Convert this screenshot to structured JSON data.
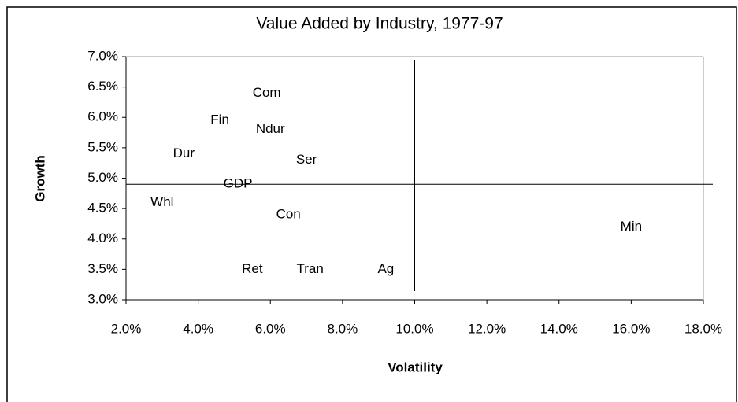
{
  "chart_data": {
    "type": "scatter",
    "title": "Value Added by Industry, 1977-97",
    "x_label": "Volatility",
    "y_label": "Growth",
    "labels": [
      "Com",
      "Fin",
      "Ndur",
      "Dur",
      "Ser",
      "GDP",
      "Whl",
      "Con",
      "Ret",
      "Tran",
      "Ag",
      "Min"
    ],
    "x": [
      5.9,
      4.6,
      6.0,
      3.6,
      7.0,
      5.1,
      3.0,
      6.5,
      5.5,
      7.1,
      9.2,
      16.0
    ],
    "values": [
      6.4,
      5.95,
      5.8,
      5.4,
      5.3,
      4.9,
      4.6,
      4.4,
      3.5,
      3.5,
      3.5,
      4.2
    ],
    "xlim": [
      2,
      18
    ],
    "ylim": [
      3,
      7
    ],
    "xticks": [
      {
        "value": 2,
        "label": "2.0%"
      },
      {
        "value": 4,
        "label": "4.0%"
      },
      {
        "value": 6,
        "label": "6.0%"
      },
      {
        "value": 8,
        "label": "8.0%"
      },
      {
        "value": 10,
        "label": "10.0%"
      },
      {
        "value": 12,
        "label": "12.0%"
      },
      {
        "value": 14,
        "label": "14.0%"
      },
      {
        "value": 16,
        "label": "16.0%"
      },
      {
        "value": 18,
        "label": "18.0%"
      }
    ],
    "yticks": [
      {
        "value": 3,
        "label": "3.0%"
      },
      {
        "value": 3.5,
        "label": "3.5%"
      },
      {
        "value": 4,
        "label": "4.0%"
      },
      {
        "value": 4.5,
        "label": "4.5%"
      },
      {
        "value": 5,
        "label": "5.0%"
      },
      {
        "value": 5.5,
        "label": "5.5%"
      },
      {
        "value": 6,
        "label": "6.0%"
      },
      {
        "value": 6.5,
        "label": "6.5%"
      },
      {
        "value": 7,
        "label": "7.0%"
      }
    ],
    "vline": 10,
    "hline": 4.9,
    "grid": false
  }
}
